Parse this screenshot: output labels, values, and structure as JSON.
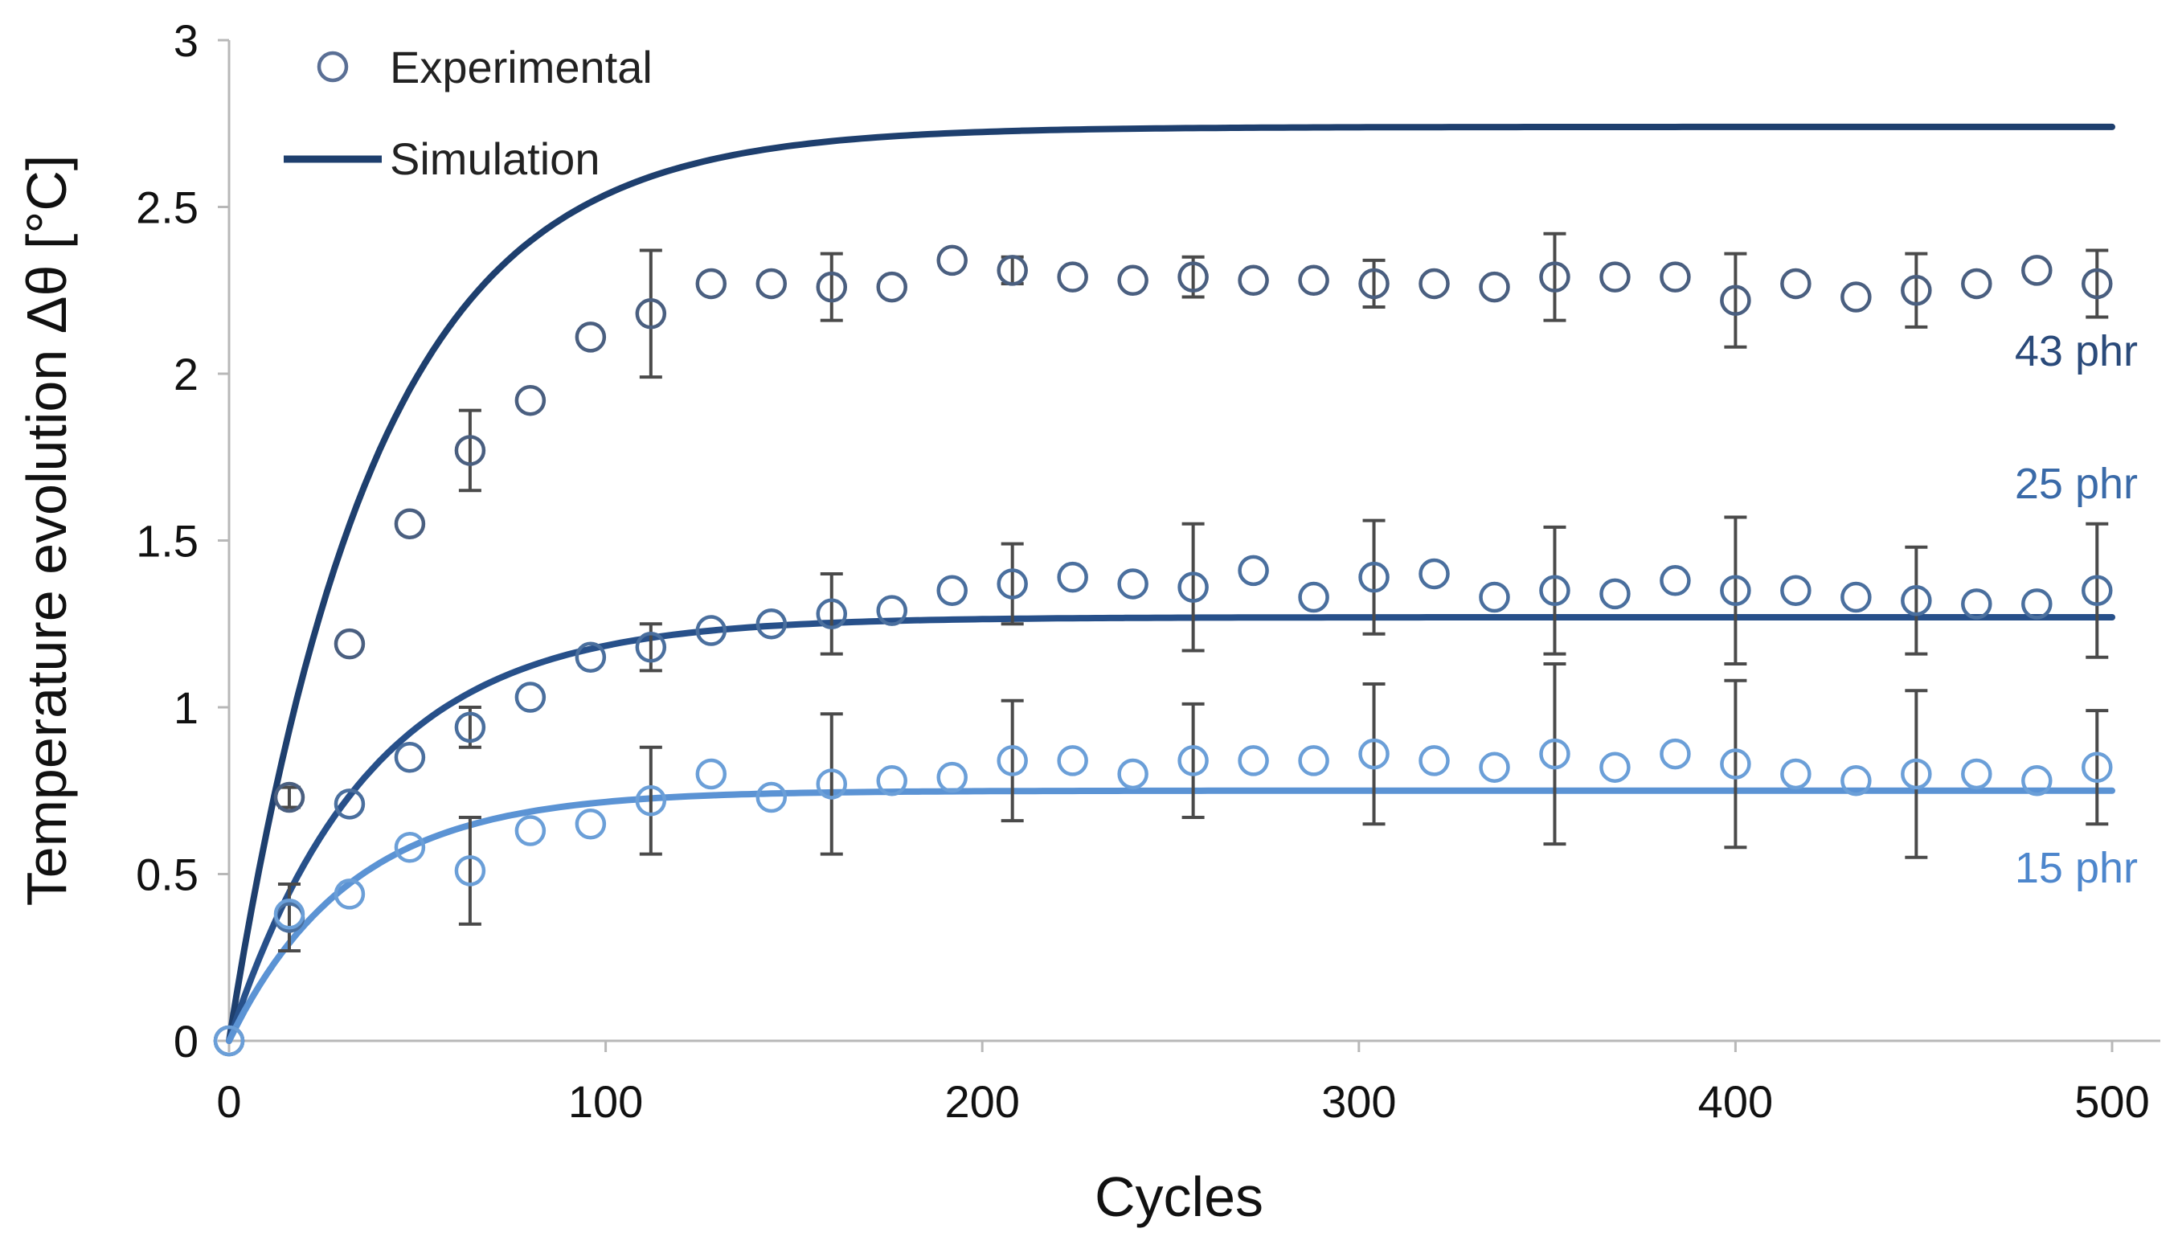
{
  "chart_data": {
    "type": "scatter",
    "title": "",
    "xlabel": "Cycles",
    "ylabel": "Temperature evolution Δθ [°C]",
    "xlim": [
      0,
      500
    ],
    "ylim": [
      0,
      3
    ],
    "xticks": [
      0,
      100,
      200,
      300,
      400,
      500
    ],
    "yticks": [
      0,
      0.5,
      1,
      1.5,
      2,
      2.5,
      3
    ],
    "xtick_labels": [
      "0",
      "100",
      "200",
      "300",
      "400",
      "500"
    ],
    "ytick_labels": [
      "0",
      "0.5",
      "1",
      "1.5",
      "2",
      "2.5",
      "3"
    ],
    "grid": false,
    "legend": {
      "position": "top-left",
      "entries": [
        {
          "label": "Experimental",
          "marker": "open-circle"
        },
        {
          "label": "Simulation",
          "marker": "line"
        }
      ]
    },
    "series": [
      {
        "name": "43 phr",
        "label": "43 phr",
        "color": "#1e3f6e",
        "label_color": "#2a4a7a",
        "marker_color": "#4a5f80",
        "simulation": {
          "plateau": 2.74,
          "rate": 0.026
        },
        "experimental": {
          "x": [
            0,
            16,
            32,
            48,
            64,
            80,
            96,
            112,
            128,
            144,
            160,
            176,
            192,
            208,
            224,
            240,
            256,
            272,
            288,
            304,
            320,
            336,
            352,
            368,
            384,
            400,
            416,
            432,
            448,
            464,
            480,
            496
          ],
          "y": [
            0,
            0.73,
            1.19,
            1.55,
            1.77,
            1.92,
            2.11,
            2.18,
            2.27,
            2.27,
            2.26,
            2.26,
            2.34,
            2.31,
            2.29,
            2.28,
            2.29,
            2.28,
            2.28,
            2.27,
            2.27,
            2.26,
            2.29,
            2.29,
            2.29,
            2.22,
            2.27,
            2.23,
            2.25,
            2.27,
            2.31,
            2.27
          ]
        },
        "error_bars": [
          {
            "x": 16,
            "y": 0.73,
            "err": 0.03
          },
          {
            "x": 64,
            "y": 1.77,
            "err": 0.12
          },
          {
            "x": 112,
            "y": 2.18,
            "err": 0.19
          },
          {
            "x": 160,
            "y": 2.26,
            "err": 0.1
          },
          {
            "x": 208,
            "y": 2.31,
            "err": 0.04
          },
          {
            "x": 256,
            "y": 2.29,
            "err": 0.06
          },
          {
            "x": 304,
            "y": 2.27,
            "err": 0.07
          },
          {
            "x": 352,
            "y": 2.29,
            "err": 0.13
          },
          {
            "x": 400,
            "y": 2.22,
            "err": 0.14
          },
          {
            "x": 448,
            "y": 2.25,
            "err": 0.11
          },
          {
            "x": 496,
            "y": 2.27,
            "err": 0.1
          }
        ]
      },
      {
        "name": "25 phr",
        "label": "25 phr",
        "color": "#27508a",
        "label_color": "#3a6aa8",
        "marker_color": "#4a6f9e",
        "simulation": {
          "plateau": 1.27,
          "rate": 0.027
        },
        "experimental": {
          "x": [
            0,
            16,
            32,
            48,
            64,
            80,
            96,
            112,
            128,
            144,
            160,
            176,
            192,
            208,
            224,
            240,
            256,
            272,
            288,
            304,
            320,
            336,
            352,
            368,
            384,
            400,
            416,
            432,
            448,
            464,
            480,
            496
          ],
          "y": [
            0,
            0.37,
            0.71,
            0.85,
            0.94,
            1.03,
            1.15,
            1.18,
            1.23,
            1.25,
            1.28,
            1.29,
            1.35,
            1.37,
            1.39,
            1.37,
            1.36,
            1.41,
            1.33,
            1.39,
            1.4,
            1.33,
            1.35,
            1.34,
            1.38,
            1.35,
            1.35,
            1.33,
            1.32,
            1.31,
            1.31,
            1.35
          ]
        },
        "error_bars": [
          {
            "x": 16,
            "y": 0.37,
            "err": 0.1
          },
          {
            "x": 64,
            "y": 0.94,
            "err": 0.06
          },
          {
            "x": 112,
            "y": 1.18,
            "err": 0.07
          },
          {
            "x": 160,
            "y": 1.28,
            "err": 0.12
          },
          {
            "x": 208,
            "y": 1.37,
            "err": 0.12
          },
          {
            "x": 256,
            "y": 1.36,
            "err": 0.19
          },
          {
            "x": 304,
            "y": 1.39,
            "err": 0.17
          },
          {
            "x": 352,
            "y": 1.35,
            "err": 0.19
          },
          {
            "x": 400,
            "y": 1.35,
            "err": 0.22
          },
          {
            "x": 448,
            "y": 1.32,
            "err": 0.16
          },
          {
            "x": 496,
            "y": 1.35,
            "err": 0.2
          }
        ]
      },
      {
        "name": "15 phr",
        "label": "15 phr",
        "color": "#5b93d4",
        "label_color": "#4d86cc",
        "marker_color": "#6b9fd8",
        "simulation": {
          "plateau": 0.75,
          "rate": 0.031
        },
        "experimental": {
          "x": [
            0,
            16,
            32,
            48,
            64,
            80,
            96,
            112,
            128,
            144,
            160,
            176,
            192,
            208,
            224,
            240,
            256,
            272,
            288,
            304,
            320,
            336,
            352,
            368,
            384,
            400,
            416,
            432,
            448,
            464,
            480,
            496
          ],
          "y": [
            0,
            0.38,
            0.44,
            0.58,
            0.51,
            0.63,
            0.65,
            0.72,
            0.8,
            0.73,
            0.77,
            0.78,
            0.79,
            0.84,
            0.84,
            0.8,
            0.84,
            0.84,
            0.84,
            0.86,
            0.84,
            0.82,
            0.86,
            0.82,
            0.86,
            0.83,
            0.8,
            0.78,
            0.8,
            0.8,
            0.78,
            0.82
          ]
        },
        "error_bars": [
          {
            "x": 64,
            "y": 0.51,
            "err": 0.16
          },
          {
            "x": 112,
            "y": 0.72,
            "err": 0.16
          },
          {
            "x": 160,
            "y": 0.77,
            "err": 0.21
          },
          {
            "x": 208,
            "y": 0.84,
            "err": 0.18
          },
          {
            "x": 256,
            "y": 0.84,
            "err": 0.17
          },
          {
            "x": 304,
            "y": 0.86,
            "err": 0.21
          },
          {
            "x": 352,
            "y": 0.86,
            "err": 0.27
          },
          {
            "x": 400,
            "y": 0.83,
            "err": 0.25
          },
          {
            "x": 448,
            "y": 0.8,
            "err": 0.25
          },
          {
            "x": 496,
            "y": 0.82,
            "err": 0.17
          }
        ]
      }
    ]
  }
}
